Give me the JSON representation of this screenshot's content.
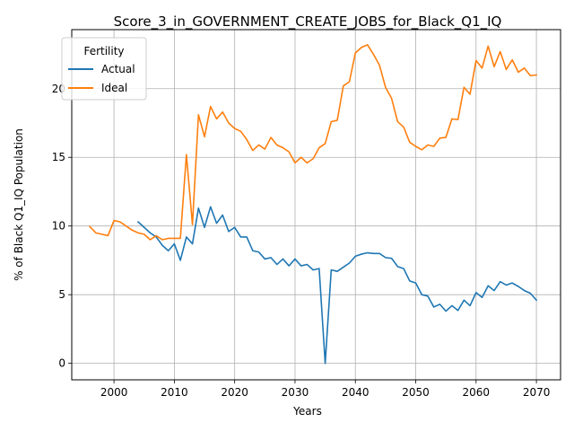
{
  "chart_data": {
    "type": "line",
    "title": "Score_3_in_GOVERNMENT_CREATE_JOBS_for_Black_Q1_IQ",
    "xlabel": "Years",
    "ylabel": "% of Black Q1_IQ Population",
    "xlim": [
      1993,
      2074
    ],
    "ylim": [
      -1.2,
      24.3
    ],
    "xticks": [
      2000,
      2010,
      2020,
      2030,
      2040,
      2050,
      2060,
      2070
    ],
    "yticks": [
      0,
      5,
      10,
      15,
      20
    ],
    "grid": true,
    "legend": {
      "title": "Fertility",
      "placement": "top-left"
    },
    "colors": {
      "Actual": "#1f77b4",
      "Ideal": "#ff7f0e"
    },
    "series": [
      {
        "name": "Actual",
        "x": [
          2004,
          2005,
          2006,
          2007,
          2008,
          2009,
          2010,
          2011,
          2012,
          2013,
          2014,
          2015,
          2016,
          2017,
          2018,
          2019,
          2020,
          2021,
          2022,
          2023,
          2024,
          2025,
          2026,
          2027,
          2028,
          2029,
          2030,
          2031,
          2032,
          2033,
          2034,
          2035,
          2036,
          2037,
          2038,
          2039,
          2040,
          2041,
          2042,
          2043,
          2044,
          2045,
          2046,
          2047,
          2048,
          2049,
          2050,
          2051,
          2052,
          2053,
          2054,
          2055,
          2056,
          2057,
          2058,
          2059,
          2060,
          2061,
          2062,
          2063,
          2064,
          2065,
          2066,
          2067,
          2068,
          2069,
          2070
        ],
        "values": [
          10.3,
          9.9,
          9.5,
          9.2,
          8.6,
          8.2,
          8.7,
          7.5,
          9.2,
          8.7,
          11.3,
          9.9,
          11.4,
          10.2,
          10.8,
          9.6,
          9.9,
          9.2,
          9.2,
          8.2,
          8.1,
          7.6,
          7.7,
          7.2,
          7.6,
          7.1,
          7.6,
          7.1,
          7.2,
          6.8,
          6.9,
          0.0,
          6.8,
          6.7,
          7.0,
          7.3,
          7.8,
          7.95,
          8.05,
          8.0,
          8.0,
          7.7,
          7.65,
          7.05,
          6.9,
          6.0,
          5.85,
          5.0,
          4.9,
          4.1,
          4.3,
          3.8,
          4.2,
          3.85,
          4.6,
          4.2,
          5.15,
          4.8,
          5.65,
          5.3,
          5.95,
          5.7,
          5.85,
          5.6,
          5.3,
          5.1,
          4.6
        ]
      },
      {
        "name": "Ideal",
        "x": [
          1996,
          1997,
          1998,
          1999,
          2000,
          2001,
          2002,
          2003,
          2004,
          2005,
          2006,
          2007,
          2008,
          2009,
          2010,
          2011,
          2012,
          2013,
          2014,
          2015,
          2016,
          2017,
          2018,
          2019,
          2020,
          2021,
          2022,
          2023,
          2024,
          2025,
          2026,
          2027,
          2028,
          2029,
          2030,
          2031,
          2032,
          2033,
          2034,
          2035,
          2036,
          2037,
          2038,
          2039,
          2040,
          2041,
          2042,
          2043,
          2044,
          2045,
          2046,
          2047,
          2048,
          2049,
          2050,
          2051,
          2052,
          2053,
          2054,
          2055,
          2056,
          2057,
          2058,
          2059,
          2060,
          2061,
          2062,
          2063,
          2064,
          2065,
          2066,
          2067,
          2068,
          2069,
          2070
        ],
        "values": [
          9.95,
          9.5,
          9.4,
          9.3,
          10.4,
          10.3,
          10.0,
          9.7,
          9.5,
          9.4,
          9.0,
          9.3,
          9.0,
          9.1,
          9.1,
          9.1,
          15.2,
          10.1,
          18.1,
          16.5,
          18.7,
          17.8,
          18.3,
          17.5,
          17.1,
          16.9,
          16.3,
          15.5,
          15.9,
          15.6,
          16.45,
          15.9,
          15.7,
          15.4,
          14.6,
          15.0,
          14.6,
          14.9,
          15.7,
          16.0,
          17.6,
          17.7,
          20.2,
          20.5,
          22.6,
          23.0,
          23.2,
          22.5,
          21.7,
          20.1,
          19.3,
          17.6,
          17.2,
          16.1,
          15.8,
          15.55,
          15.9,
          15.8,
          16.4,
          16.45,
          17.8,
          17.75,
          20.1,
          19.6,
          22.05,
          21.5,
          23.1,
          21.6,
          22.7,
          21.4,
          22.1,
          21.2,
          21.5,
          20.95,
          21.0
        ]
      }
    ]
  }
}
